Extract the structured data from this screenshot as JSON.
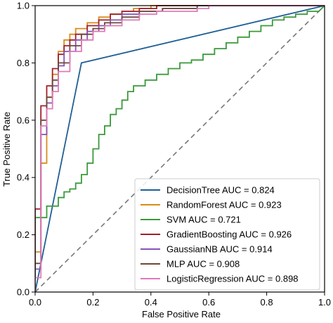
{
  "chart_data": {
    "type": "line",
    "title": "",
    "xlabel": "False Positive Rate",
    "ylabel": "True Positive Rate",
    "xlim": [
      0.0,
      1.0
    ],
    "ylim": [
      0.0,
      1.0
    ],
    "xticks": [
      "0.0",
      "0.2",
      "0.4",
      "0.6",
      "0.8",
      "1.0"
    ],
    "yticks": [
      "0.0",
      "0.2",
      "0.4",
      "0.6",
      "0.8",
      "1.0"
    ],
    "grid": false,
    "legend_position": "lower-right",
    "diagonal": {
      "x": [
        0,
        1
      ],
      "y": [
        0,
        1
      ],
      "color": "#777777",
      "style": "dashed"
    },
    "series": [
      {
        "name": "DecisionTree AUC = 0.824",
        "color": "#1f5f94",
        "x": [
          0,
          0.16,
          1
        ],
        "y": [
          0,
          0.8,
          1
        ]
      },
      {
        "name": "RandomForest AUC = 0.923",
        "color": "#d98c1a",
        "x": [
          0,
          0,
          0.02,
          0.02,
          0.04,
          0.04,
          0.06,
          0.06,
          0.08,
          0.08,
          0.1,
          0.1,
          0.12,
          0.12,
          0.14,
          0.14,
          0.18,
          0.18,
          0.22,
          0.22,
          0.26,
          0.26,
          0.3,
          0.3,
          0.34,
          0.34,
          0.4,
          0.4,
          0.46,
          0.46,
          0.52,
          1
        ],
        "y": [
          0,
          0.14,
          0.14,
          0.45,
          0.45,
          0.68,
          0.68,
          0.76,
          0.76,
          0.84,
          0.84,
          0.88,
          0.88,
          0.9,
          0.9,
          0.92,
          0.92,
          0.94,
          0.94,
          0.96,
          0.96,
          0.97,
          0.97,
          0.98,
          0.98,
          0.99,
          0.99,
          1.0,
          1.0,
          1.0,
          1.0,
          1.0
        ]
      },
      {
        "name": "SVM AUC = 0.721",
        "color": "#3a9a3a",
        "x": [
          0,
          0,
          0.04,
          0.04,
          0.08,
          0.08,
          0.1,
          0.1,
          0.12,
          0.12,
          0.14,
          0.14,
          0.16,
          0.16,
          0.18,
          0.18,
          0.2,
          0.2,
          0.22,
          0.22,
          0.24,
          0.24,
          0.26,
          0.26,
          0.28,
          0.28,
          0.3,
          0.3,
          0.32,
          0.32,
          0.34,
          0.34,
          0.38,
          0.38,
          0.42,
          0.42,
          0.46,
          0.46,
          0.5,
          0.5,
          0.54,
          0.54,
          0.58,
          0.58,
          0.62,
          0.62,
          0.66,
          0.66,
          0.7,
          0.7,
          0.74,
          0.74,
          0.78,
          0.78,
          0.82,
          0.82,
          0.86,
          0.86,
          0.9,
          0.9,
          0.94,
          0.94,
          0.98,
          1
        ],
        "y": [
          0,
          0.26,
          0.26,
          0.3,
          0.3,
          0.33,
          0.33,
          0.35,
          0.35,
          0.36,
          0.36,
          0.38,
          0.38,
          0.41,
          0.41,
          0.45,
          0.45,
          0.5,
          0.5,
          0.55,
          0.55,
          0.58,
          0.58,
          0.62,
          0.62,
          0.64,
          0.64,
          0.67,
          0.67,
          0.7,
          0.7,
          0.72,
          0.72,
          0.74,
          0.74,
          0.76,
          0.76,
          0.78,
          0.78,
          0.8,
          0.8,
          0.81,
          0.81,
          0.83,
          0.83,
          0.85,
          0.85,
          0.87,
          0.87,
          0.89,
          0.89,
          0.91,
          0.91,
          0.93,
          0.93,
          0.95,
          0.95,
          0.96,
          0.96,
          0.97,
          0.97,
          0.98,
          0.98,
          1.0
        ]
      },
      {
        "name": "GradientBoosting AUC = 0.926",
        "color": "#a0202a",
        "x": [
          0,
          0,
          0.02,
          0.02,
          0.04,
          0.04,
          0.06,
          0.06,
          0.08,
          0.08,
          0.1,
          0.1,
          0.12,
          0.12,
          0.14,
          0.14,
          0.18,
          0.18,
          0.22,
          0.22,
          0.26,
          0.26,
          0.3,
          0.3,
          0.36,
          0.36,
          0.42,
          0.42,
          1
        ],
        "y": [
          0,
          0.29,
          0.29,
          0.65,
          0.65,
          0.72,
          0.72,
          0.78,
          0.78,
          0.83,
          0.83,
          0.86,
          0.86,
          0.88,
          0.88,
          0.9,
          0.9,
          0.93,
          0.93,
          0.95,
          0.95,
          0.97,
          0.97,
          0.98,
          0.98,
          0.99,
          0.99,
          1.0,
          1.0
        ]
      },
      {
        "name": "GaussianNB AUC = 0.914",
        "color": "#8a52b8",
        "x": [
          0,
          0,
          0.02,
          0.02,
          0.04,
          0.04,
          0.06,
          0.06,
          0.08,
          0.08,
          0.1,
          0.1,
          0.14,
          0.14,
          0.18,
          0.18,
          0.22,
          0.22,
          0.26,
          0.26,
          0.3,
          0.3,
          0.36,
          0.36,
          0.44,
          0.44,
          0.56,
          0.56,
          1
        ],
        "y": [
          0,
          0.08,
          0.08,
          0.55,
          0.55,
          0.66,
          0.66,
          0.72,
          0.72,
          0.79,
          0.79,
          0.84,
          0.84,
          0.88,
          0.88,
          0.91,
          0.91,
          0.93,
          0.93,
          0.95,
          0.95,
          0.97,
          0.97,
          0.98,
          0.98,
          0.99,
          0.99,
          1.0,
          1.0
        ]
      },
      {
        "name": "MLP AUC = 0.908",
        "color": "#6b4a3a",
        "x": [
          0,
          0,
          0.02,
          0.02,
          0.04,
          0.04,
          0.06,
          0.06,
          0.08,
          0.08,
          0.12,
          0.12,
          0.16,
          0.16,
          0.2,
          0.2,
          0.24,
          0.24,
          0.3,
          0.3,
          0.36,
          0.36,
          0.44,
          0.44,
          0.56,
          0.56,
          1
        ],
        "y": [
          0,
          0.1,
          0.1,
          0.6,
          0.6,
          0.68,
          0.68,
          0.74,
          0.74,
          0.8,
          0.8,
          0.86,
          0.86,
          0.9,
          0.9,
          0.92,
          0.92,
          0.94,
          0.94,
          0.96,
          0.96,
          0.98,
          0.98,
          0.99,
          0.99,
          1.0,
          1.0
        ]
      },
      {
        "name": "LogisticRegression AUC = 0.898",
        "color": "#e07ab8",
        "x": [
          0,
          0,
          0.02,
          0.02,
          0.04,
          0.04,
          0.06,
          0.06,
          0.08,
          0.08,
          0.12,
          0.12,
          0.16,
          0.16,
          0.2,
          0.2,
          0.24,
          0.24,
          0.3,
          0.3,
          0.36,
          0.36,
          0.42,
          0.42,
          0.56,
          0.56,
          0.6,
          0.6,
          1
        ],
        "y": [
          0,
          0.05,
          0.05,
          0.58,
          0.58,
          0.64,
          0.64,
          0.7,
          0.7,
          0.77,
          0.77,
          0.84,
          0.84,
          0.88,
          0.88,
          0.91,
          0.91,
          0.93,
          0.93,
          0.95,
          0.95,
          0.97,
          0.97,
          0.98,
          0.98,
          0.99,
          0.99,
          1.0,
          1.0
        ]
      }
    ]
  }
}
